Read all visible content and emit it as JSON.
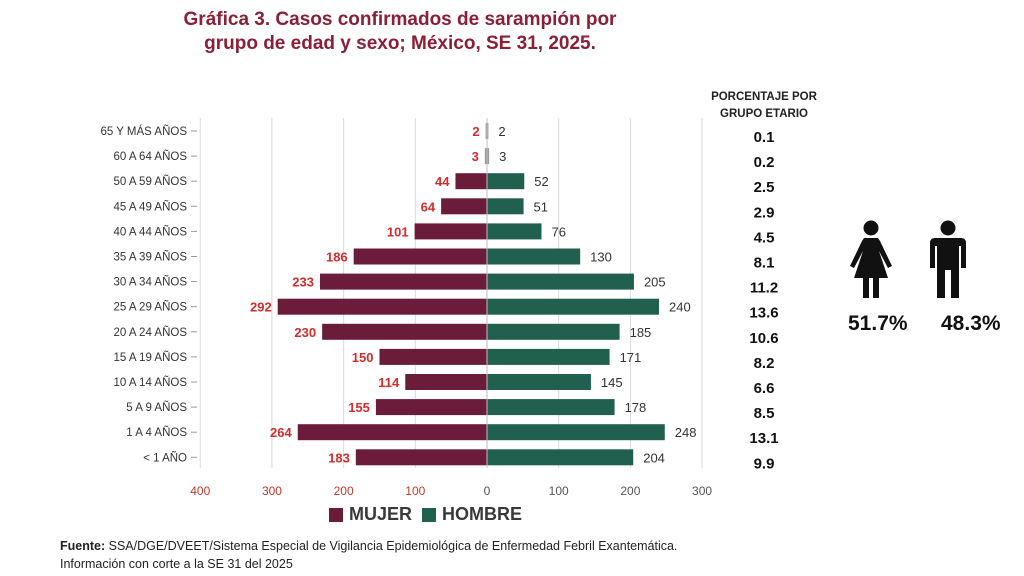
{
  "title": {
    "line1": "Gráfica 3. Casos confirmados de sarampión por",
    "line2": "grupo de edad y sexo; México, SE 31, 2025."
  },
  "percent_header": {
    "line1": "PORCENTAJE POR",
    "line2": "GRUPO ETARIO"
  },
  "chart_data": {
    "type": "bar",
    "orientation": "horizontal-population-pyramid",
    "categories": [
      "65 Y MÁS AÑOS",
      "60 A 64 AÑOS",
      "50 A 59 AÑOS",
      "45 A 49 AÑOS",
      "40 A 44 AÑOS",
      "35 A 39 AÑOS",
      "30 A 34 AÑOS",
      "25 A 29 AÑOS",
      "20 A 24 AÑOS",
      "15 A 19 AÑOS",
      "10 A 14 AÑOS",
      "5 A 9 AÑOS",
      "1 A 4 AÑOS",
      "< 1 AÑO"
    ],
    "series": [
      {
        "name": "MUJER",
        "color": "#6b1c3a",
        "label_color": "#d42b2b",
        "values": [
          2,
          3,
          44,
          64,
          101,
          186,
          233,
          292,
          230,
          150,
          114,
          155,
          264,
          183
        ]
      },
      {
        "name": "HOMBRE",
        "color": "#215f4f",
        "label_color": "#333333",
        "values": [
          2,
          3,
          52,
          51,
          76,
          130,
          205,
          240,
          185,
          171,
          145,
          178,
          248,
          204
        ]
      }
    ],
    "percentages": [
      "0.1",
      "0.2",
      "2.5",
      "2.9",
      "4.5",
      "8.1",
      "11.2",
      "13.6",
      "10.6",
      "8.2",
      "6.6",
      "8.5",
      "13.1",
      "9.9"
    ],
    "x_ticks": [
      {
        "value": -400,
        "label": "400"
      },
      {
        "value": -300,
        "label": "300"
      },
      {
        "value": -200,
        "label": "200"
      },
      {
        "value": -100,
        "label": "100"
      },
      {
        "value": 0,
        "label": "0"
      },
      {
        "value": 100,
        "label": "100"
      },
      {
        "value": 200,
        "label": "200"
      },
      {
        "value": 300,
        "label": "300"
      }
    ],
    "xlim": [
      -400,
      300
    ],
    "grid": true,
    "negative_tick_color": "#c0392b",
    "positive_tick_color": "#555555"
  },
  "sex_summary": {
    "female_pct": "51.7%",
    "male_pct": "48.3%",
    "female_icon": "woman-icon",
    "male_icon": "man-icon"
  },
  "legend": {
    "female_label": "MUJER",
    "male_label": "HOMBRE"
  },
  "footnote": {
    "source_label": "Fuente:",
    "source_text": " SSA/DGE/DVEET/Sistema Especial de Vigilancia Epidemiológica de Enfermedad Febril Exantemática.",
    "cutoff_text": "Información con corte a la SE 31 del 2025"
  }
}
